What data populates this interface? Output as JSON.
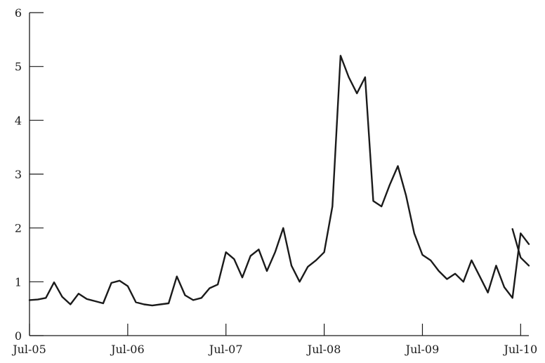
{
  "chart_data": {
    "type": "line",
    "title": "",
    "xlabel": "",
    "ylabel": "",
    "ylim": [
      0,
      6
    ],
    "yticks": [
      0,
      1,
      2,
      3,
      4,
      5,
      6
    ],
    "ytick_labels": [
      "0",
      "1",
      "2",
      "3",
      "4",
      "5",
      "6"
    ],
    "xlim": [
      "2005-07",
      "2010-08"
    ],
    "xticks": [
      "2005-07",
      "2006-07",
      "2007-07",
      "2008-07",
      "2009-07",
      "2010-07"
    ],
    "xtick_labels": [
      "Jul-05",
      "Jul-06",
      "Jul-07",
      "Jul-08",
      "Jul-09",
      "Jul-10"
    ],
    "grid": false,
    "legend": "none",
    "line_color": "#1a1a1a",
    "series": [
      {
        "x": [
          "2005-07",
          "2005-08",
          "2005-09",
          "2005-10",
          "2005-11",
          "2005-12",
          "2006-01",
          "2006-02",
          "2006-03",
          "2006-04",
          "2006-05",
          "2006-06",
          "2006-07",
          "2006-08",
          "2006-09",
          "2006-10",
          "2006-11",
          "2006-12",
          "2007-01",
          "2007-02",
          "2007-03",
          "2007-04",
          "2007-05",
          "2007-06",
          "2007-07",
          "2007-08",
          "2007-09",
          "2007-10",
          "2007-11",
          "2007-12",
          "2008-01",
          "2008-02",
          "2008-03",
          "2008-04",
          "2008-05",
          "2008-06",
          "2008-07",
          "2008-08",
          "2008-09",
          "2008-10",
          "2008-11",
          "2008-12",
          "2009-01",
          "2009-02",
          "2009-03",
          "2009-04",
          "2009-05",
          "2009-06",
          "2009-07",
          "2009-08",
          "2009-09",
          "2009-10",
          "2009-11",
          "2009-12",
          "2010-01",
          "2010-02",
          "2010-03",
          "2010-04",
          "2010-05",
          "2010-06",
          "2010-07",
          "2010-08"
        ],
        "values": [
          0.66,
          0.67,
          0.7,
          0.99,
          0.72,
          0.58,
          0.78,
          0.68,
          0.64,
          0.6,
          0.98,
          1.02,
          0.92,
          0.62,
          0.58,
          0.56,
          0.58,
          0.6,
          1.1,
          0.75,
          0.66,
          0.7,
          0.88,
          0.95,
          1.55,
          1.42,
          1.08,
          1.48,
          1.6,
          1.2,
          1.55,
          2.0,
          1.3,
          1.0,
          1.28,
          1.4,
          1.55,
          2.4,
          5.2,
          4.8,
          4.5,
          4.8,
          2.5,
          2.4,
          2.8,
          3.15,
          2.6,
          1.9,
          1.5,
          1.4,
          1.2,
          1.05,
          1.15,
          1.0,
          1.4,
          1.1,
          0.8,
          1.3,
          0.9,
          0.7,
          1.9,
          1.7
        ]
      },
      {
        "x": [
          "2010-06",
          "2010-07",
          "2010-08"
        ],
        "values": [
          1.98,
          1.45,
          1.3
        ]
      }
    ]
  }
}
